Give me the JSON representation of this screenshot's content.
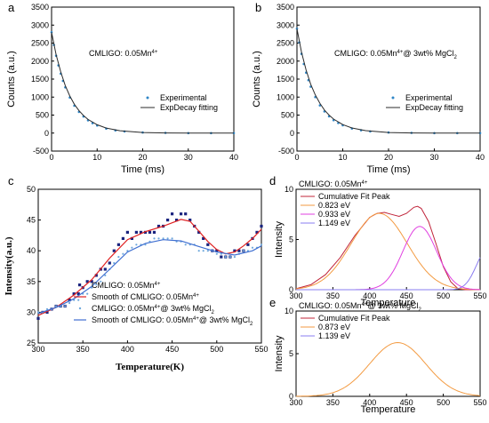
{
  "panels": {
    "a": {
      "label": "a"
    },
    "b": {
      "label": "b"
    },
    "c": {
      "label": "c"
    },
    "d": {
      "label": "d"
    },
    "e": {
      "label": "e"
    }
  },
  "chart_data": [
    {
      "id": "a",
      "type": "scatter",
      "title": "",
      "annotation": "CMLIGO: 0.05Mn",
      "annotation_sup": "4+",
      "xlabel": "Time (ms)",
      "ylabel": "Counts (a.u.)",
      "xlim": [
        0,
        40
      ],
      "ylim": [
        -500,
        3500
      ],
      "xticks": [
        0,
        10,
        20,
        30,
        40
      ],
      "yticks": [
        -500,
        0,
        500,
        1000,
        1500,
        2000,
        2500,
        3000,
        3500
      ],
      "legend": {
        "position": "center-right",
        "entries": [
          {
            "name": "Experimental",
            "color": "#2f86c7",
            "marker": "point"
          },
          {
            "name": "ExpDecay fitting",
            "color": "#2b2b2b",
            "marker": "line"
          }
        ]
      },
      "series": [
        {
          "name": "Experimental",
          "color": "#2f86c7",
          "x": [
            0,
            0.5,
            1,
            1.5,
            2,
            2.5,
            3,
            4,
            5,
            6,
            7,
            8,
            9,
            10,
            12,
            14,
            16,
            20,
            25,
            30,
            35,
            40
          ],
          "y": [
            2800,
            2450,
            2150,
            1880,
            1650,
            1450,
            1270,
            990,
            760,
            590,
            460,
            355,
            275,
            210,
            125,
            75,
            45,
            15,
            5,
            0,
            0,
            0
          ]
        },
        {
          "name": "ExpDecay fitting",
          "color": "#2b2b2b",
          "x": [
            0,
            1,
            2,
            3,
            4,
            5,
            6,
            7,
            8,
            10,
            12,
            15,
            20,
            25,
            30,
            40
          ],
          "y": [
            2800,
            2180,
            1700,
            1320,
            1030,
            800,
            625,
            487,
            380,
            230,
            140,
            65,
            15,
            4,
            1,
            0
          ]
        }
      ]
    },
    {
      "id": "b",
      "type": "scatter",
      "title": "",
      "annotation": "CMLIGO: 0.05Mn",
      "annotation_sup": "4+",
      "annotation_tail": "@ 3wt% MgCl",
      "annotation_sub": "2",
      "xlabel": "Time (ms)",
      "ylabel": "Counts (a.u.)",
      "xlim": [
        0,
        40
      ],
      "ylim": [
        -500,
        3500
      ],
      "xticks": [
        0,
        10,
        20,
        30,
        40
      ],
      "yticks": [
        -500,
        0,
        500,
        1000,
        1500,
        2000,
        2500,
        3000,
        3500
      ],
      "legend": {
        "position": "center-right",
        "entries": [
          {
            "name": "Experimental",
            "color": "#2f86c7",
            "marker": "point"
          },
          {
            "name": "ExpDecay fitting",
            "color": "#2b2b2b",
            "marker": "line"
          }
        ]
      },
      "series": [
        {
          "name": "Experimental",
          "color": "#2f86c7",
          "x": [
            0,
            0.5,
            1,
            1.5,
            2,
            2.5,
            3,
            4,
            5,
            6,
            7,
            8,
            9,
            10,
            12,
            14,
            16,
            20,
            25,
            30,
            35,
            40
          ],
          "y": [
            2900,
            2520,
            2200,
            1920,
            1680,
            1470,
            1290,
            1000,
            770,
            600,
            465,
            360,
            280,
            215,
            128,
            77,
            46,
            15,
            5,
            0,
            0,
            0
          ]
        },
        {
          "name": "ExpDecay fitting",
          "color": "#2b2b2b",
          "x": [
            0,
            1,
            2,
            3,
            4,
            5,
            6,
            7,
            8,
            10,
            12,
            15,
            20,
            25,
            30,
            40
          ],
          "y": [
            2900,
            2250,
            1750,
            1360,
            1060,
            825,
            640,
            500,
            390,
            235,
            143,
            67,
            16,
            4,
            1,
            0
          ]
        }
      ]
    },
    {
      "id": "c",
      "type": "scatter",
      "title": "",
      "xlabel": "Temperature(K)",
      "ylabel": "Intensity(a.u.)",
      "xlim": [
        300,
        550
      ],
      "ylim": [
        25,
        50
      ],
      "xticks": [
        300,
        350,
        400,
        450,
        500,
        550
      ],
      "yticks": [
        25,
        30,
        35,
        40,
        45,
        50
      ],
      "legend": {
        "position": "bottom-center"
      },
      "series": [
        {
          "name": "CMLIGO: 0.05Mn",
          "sup": "4+",
          "tail": "",
          "sub": "",
          "color": "#1a237e",
          "marker": "square",
          "x": [
            300,
            305,
            310,
            315,
            320,
            325,
            330,
            335,
            340,
            345,
            350,
            355,
            360,
            365,
            370,
            375,
            380,
            385,
            390,
            395,
            400,
            405,
            410,
            415,
            420,
            425,
            430,
            435,
            440,
            445,
            450,
            455,
            460,
            465,
            470,
            475,
            480,
            485,
            490,
            495,
            500,
            505,
            510,
            515,
            520,
            525,
            530,
            535,
            540,
            545,
            550
          ],
          "y": [
            29,
            30,
            30,
            30.5,
            31,
            31,
            31,
            32,
            33,
            33,
            34,
            35,
            35,
            36,
            37,
            37,
            38,
            40,
            41,
            42,
            43,
            42,
            43,
            43,
            43,
            43,
            43,
            44,
            44,
            45,
            46,
            45,
            46,
            46,
            45,
            44,
            43,
            42,
            41,
            40,
            40,
            39,
            39,
            39,
            40,
            40,
            40,
            41,
            42,
            43,
            44
          ]
        },
        {
          "name": "Smooth of CMLIGO: 0.05Mn",
          "sup": "4+",
          "tail": "",
          "sub": "",
          "color": "#e02020",
          "marker": "line",
          "x": [
            300,
            320,
            340,
            360,
            380,
            400,
            420,
            440,
            460,
            470,
            480,
            490,
            500,
            510,
            520,
            530,
            540,
            550
          ],
          "y": [
            29.5,
            30.8,
            32.8,
            35.3,
            38.8,
            41.8,
            43.1,
            44.0,
            45.1,
            44.8,
            43.2,
            41.5,
            40.2,
            39.5,
            39.8,
            40.8,
            42.0,
            43.5
          ]
        },
        {
          "name": "CMLIGO: 0.05Mn",
          "sup": "4+",
          "tail": "@ 3wt% MgCl",
          "sub": "2",
          "color": "#6fa8dc",
          "marker": "point",
          "x": [
            300,
            305,
            310,
            315,
            320,
            325,
            330,
            335,
            340,
            345,
            350,
            355,
            360,
            365,
            370,
            375,
            380,
            385,
            390,
            395,
            400,
            405,
            410,
            415,
            420,
            425,
            430,
            435,
            440,
            445,
            450,
            455,
            460,
            465,
            470,
            475,
            480,
            485,
            490,
            495,
            500,
            505,
            510,
            515,
            520,
            525,
            530,
            535,
            540,
            545,
            550
          ],
          "y": [
            30,
            30,
            30.5,
            30.5,
            31,
            31,
            31,
            31.5,
            32,
            32,
            33,
            33,
            34,
            34.5,
            35,
            36,
            37,
            38,
            39,
            39.5,
            40,
            40.5,
            41,
            41,
            41,
            41.5,
            42,
            42,
            42,
            42,
            42,
            41.5,
            41.5,
            41,
            41,
            41,
            40,
            40,
            40,
            40,
            39.5,
            39.5,
            39,
            39,
            39,
            39.5,
            40,
            40,
            40.5,
            40.5,
            41
          ]
        },
        {
          "name": "Smooth of CMLIGO: 0.05Mn",
          "sup": "4+",
          "tail": "@ 3wt% MgCl",
          "sub": "2",
          "color": "#3f6fd1",
          "marker": "line",
          "x": [
            300,
            320,
            340,
            360,
            380,
            400,
            420,
            440,
            460,
            480,
            500,
            520,
            540,
            550
          ],
          "y": [
            29.8,
            30.8,
            32.2,
            34.2,
            37.0,
            39.8,
            41.2,
            41.8,
            41.6,
            40.7,
            39.8,
            39.3,
            40.0,
            40.8
          ]
        }
      ]
    },
    {
      "id": "d",
      "type": "line",
      "title": "CMLIGO: 0.05Mn",
      "title_sup": "4+",
      "title_tail": "",
      "title_sub": "",
      "xlabel": "Temperature",
      "ylabel": "Intensity",
      "xlim": [
        300,
        550
      ],
      "ylim": [
        0,
        10
      ],
      "xticks": [
        300,
        350,
        400,
        450,
        500,
        550
      ],
      "yticks": [
        0,
        5,
        10
      ],
      "legend": {
        "position": "top-left"
      },
      "series": [
        {
          "name": "Cumulative Fit Peak",
          "color": "#c0243a",
          "center": 0,
          "x": [
            300,
            320,
            340,
            360,
            380,
            400,
            410,
            420,
            430,
            440,
            450,
            460,
            465,
            470,
            480,
            490,
            500,
            510,
            520,
            530,
            540,
            550
          ],
          "y": [
            0.1,
            0.5,
            1.5,
            3.2,
            5.4,
            7.2,
            7.6,
            7.7,
            7.5,
            7.3,
            7.6,
            8.2,
            8.3,
            8.1,
            6.8,
            4.6,
            2.3,
            0.8,
            0.1,
            0,
            0,
            0
          ]
        },
        {
          "name": "0.823 eV",
          "color": "#f39a40",
          "center": 413,
          "amp": 7.6,
          "sigma": 38
        },
        {
          "name": "0.933 eV",
          "color": "#e040e0",
          "center": 468,
          "amp": 6.3,
          "sigma": 23
        },
        {
          "name": "1.149 eV",
          "color": "#8a7cf0",
          "center": 560,
          "amp": 4.0,
          "sigma": 15
        }
      ]
    },
    {
      "id": "e",
      "type": "line",
      "title": "CMLIGO: 0.05Mn",
      "title_sup": "4+",
      "title_tail": "@ 3wt% MgCl",
      "title_sub": "2",
      "xlabel": "Temperature",
      "ylabel": "Intensity",
      "xlim": [
        300,
        550
      ],
      "ylim": [
        0,
        10
      ],
      "xticks": [
        300,
        350,
        400,
        450,
        500,
        550
      ],
      "yticks": [
        0,
        5,
        10
      ],
      "legend": {
        "position": "top-left"
      },
      "series": [
        {
          "name": "Cumulative Fit Peak",
          "color": "#c0243a",
          "center": 0,
          "x": [],
          "y": []
        },
        {
          "name": "0.873 eV",
          "color": "#f39a40",
          "center": 438,
          "amp": 6.3,
          "sigma": 38
        },
        {
          "name": "1.139 eV",
          "color": "#8a7cf0",
          "center": 0,
          "amp": 0,
          "sigma": 1
        }
      ]
    }
  ]
}
